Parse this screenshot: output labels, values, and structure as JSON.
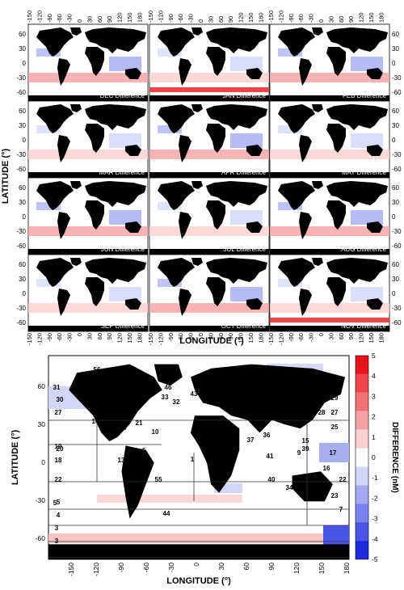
{
  "grid": {
    "lon_ticks": [
      "-150",
      "-120",
      "-90",
      "-60",
      "-30",
      "0",
      "30",
      "60",
      "90",
      "120",
      "150",
      "180"
    ],
    "lat_ticks": [
      "60",
      "30",
      "0",
      "-30",
      "-60"
    ],
    "y_axis_label": "LATITUDE (°)",
    "x_axis_label": "LONGITUDE (°)",
    "panels": [
      {
        "label": "DEC Difference",
        "show_right_ticks": false
      },
      {
        "label": "JAN Difference",
        "show_right_ticks": false
      },
      {
        "label": "FEB Difference",
        "show_right_ticks": true
      },
      {
        "label": "MAR Difference",
        "show_right_ticks": false
      },
      {
        "label": "APR Difference",
        "show_right_ticks": false
      },
      {
        "label": "MAY Difference",
        "show_right_ticks": true
      },
      {
        "label": "JUN Difference",
        "show_right_ticks": false
      },
      {
        "label": "JUL Difference",
        "show_right_ticks": false
      },
      {
        "label": "AUG Difference",
        "show_right_ticks": true
      },
      {
        "label": "SEP Difference",
        "show_right_ticks": false
      },
      {
        "label": "OCT Difference",
        "show_right_ticks": false
      },
      {
        "label": "NOV Difference",
        "show_right_ticks": true
      }
    ]
  },
  "bottom_map": {
    "lat_ticks": [
      "60",
      "30",
      "0",
      "-30",
      "-60"
    ],
    "lon_ticks": [
      "-150",
      "-120",
      "-90",
      "-60",
      "-30",
      "0",
      "30",
      "60",
      "90",
      "120",
      "150",
      "180"
    ],
    "y_axis_label": "LATITUDE (°)",
    "x_axis_label": "LONGITUDE (°)",
    "colorbar": {
      "label": "DIFFERENCE (nM)",
      "ticks": [
        "5",
        "4",
        "3",
        "2",
        "1",
        "0",
        "-1",
        "-2",
        "-3",
        "-4",
        "-5"
      ],
      "colors": [
        "#e5151c",
        "#ec4448",
        "#f17274",
        "#f6a0a1",
        "#fbd0d0",
        "#ffffff",
        "#d2d6f9",
        "#a4aaf2",
        "#7981ec",
        "#4b55e3",
        "#1e2bdc"
      ]
    },
    "region_labels": [
      "56",
      "46",
      "31",
      "33",
      "43",
      "30",
      "32",
      "27",
      "14",
      "48",
      "21",
      "10",
      "5",
      "6",
      "37",
      "36",
      "41",
      "39",
      "15",
      "28",
      "27",
      "25",
      "31",
      "29",
      "20",
      "19",
      "18",
      "13",
      "17",
      "1",
      "2",
      "9",
      "16",
      "22",
      "55",
      "40",
      "34",
      "22",
      "5",
      "4",
      "7",
      "23",
      "44",
      "3",
      "3"
    ]
  }
}
